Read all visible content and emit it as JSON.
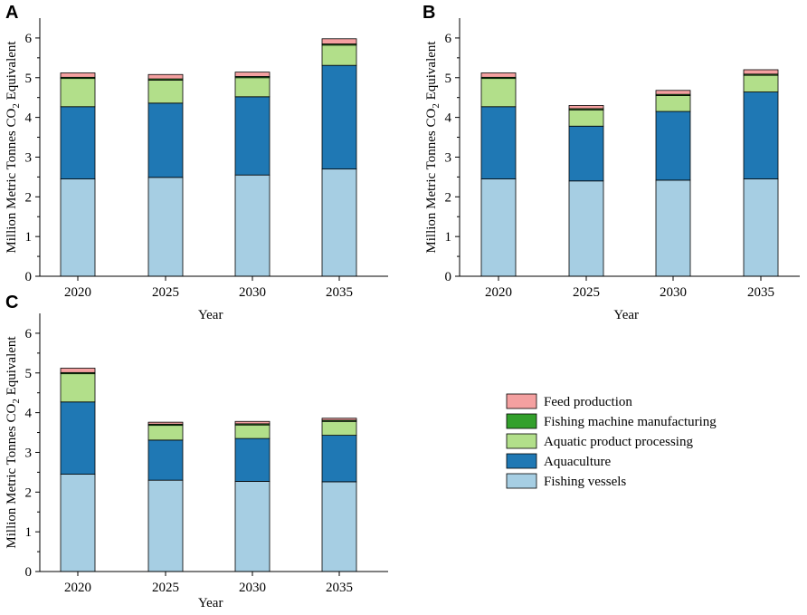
{
  "chart_data": [
    {
      "panel": "A",
      "type": "bar",
      "stacked": true,
      "categories": [
        "2020",
        "2025",
        "2030",
        "2035"
      ],
      "xlabel": "Year",
      "ylabel_main": "Million Metric Tonnes CO",
      "ylabel_sub": "2",
      "ylabel_tail": " Equivalent",
      "ylim": [
        0,
        6.5
      ],
      "yticks": [
        "0",
        "1",
        "2",
        "3",
        "4",
        "5",
        "6"
      ],
      "series": [
        {
          "name": "Fishing vessels",
          "values": [
            2.45,
            2.49,
            2.55,
            2.7
          ]
        },
        {
          "name": "Aquaculture",
          "values": [
            1.82,
            1.87,
            1.97,
            2.61
          ]
        },
        {
          "name": "Aquatic product processing",
          "values": [
            0.71,
            0.58,
            0.48,
            0.51
          ]
        },
        {
          "name": "Fishing machine manufacturing",
          "values": [
            0.03,
            0.03,
            0.03,
            0.03
          ]
        },
        {
          "name": "Feed production",
          "values": [
            0.11,
            0.11,
            0.11,
            0.13
          ]
        }
      ]
    },
    {
      "panel": "B",
      "type": "bar",
      "stacked": true,
      "categories": [
        "2020",
        "2025",
        "2030",
        "2035"
      ],
      "xlabel": "Year",
      "ylabel_main": "Million Metric Tonnes CO",
      "ylabel_sub": "2",
      "ylabel_tail": " Equivalent",
      "ylim": [
        0,
        6.5
      ],
      "yticks": [
        "0",
        "1",
        "2",
        "3",
        "4",
        "5",
        "6"
      ],
      "series": [
        {
          "name": "Fishing vessels",
          "values": [
            2.45,
            2.4,
            2.42,
            2.45
          ]
        },
        {
          "name": "Aquaculture",
          "values": [
            1.82,
            1.38,
            1.73,
            2.19
          ]
        },
        {
          "name": "Aquatic product processing",
          "values": [
            0.71,
            0.41,
            0.4,
            0.42
          ]
        },
        {
          "name": "Fishing machine manufacturing",
          "values": [
            0.03,
            0.03,
            0.03,
            0.03
          ]
        },
        {
          "name": "Feed production",
          "values": [
            0.11,
            0.08,
            0.1,
            0.11
          ]
        }
      ]
    },
    {
      "panel": "C",
      "type": "bar",
      "stacked": true,
      "categories": [
        "2020",
        "2025",
        "2030",
        "2035"
      ],
      "xlabel": "Year",
      "ylabel_main": "Million Metric Tonnes CO",
      "ylabel_sub": "2",
      "ylabel_tail": " Equivalent",
      "ylim": [
        0,
        6.5
      ],
      "yticks": [
        "0",
        "1",
        "2",
        "3",
        "4",
        "5",
        "6"
      ],
      "series": [
        {
          "name": "Fishing vessels",
          "values": [
            2.45,
            2.3,
            2.27,
            2.26
          ]
        },
        {
          "name": "Aquaculture",
          "values": [
            1.82,
            1.01,
            1.08,
            1.17
          ]
        },
        {
          "name": "Aquatic product processing",
          "values": [
            0.71,
            0.37,
            0.34,
            0.35
          ]
        },
        {
          "name": "Fishing machine manufacturing",
          "values": [
            0.03,
            0.03,
            0.03,
            0.03
          ]
        },
        {
          "name": "Feed production",
          "values": [
            0.11,
            0.05,
            0.06,
            0.05
          ]
        }
      ]
    }
  ],
  "legend": {
    "items": [
      {
        "label": "Feed production",
        "color": "#f4a0a0"
      },
      {
        "label": "Fishing machine manufacturing",
        "color": "#33a02c"
      },
      {
        "label": "Aquatic product processing",
        "color": "#b2df8a"
      },
      {
        "label": "Aquaculture",
        "color": "#1f78b4"
      },
      {
        "label": "Fishing vessels",
        "color": "#a6cee3"
      }
    ]
  },
  "colors": {
    "Fishing vessels": "#a6cee3",
    "Aquaculture": "#1f78b4",
    "Aquatic product processing": "#b2df8a",
    "Fishing machine manufacturing": "#33a02c",
    "Feed production": "#f4a0a0"
  }
}
